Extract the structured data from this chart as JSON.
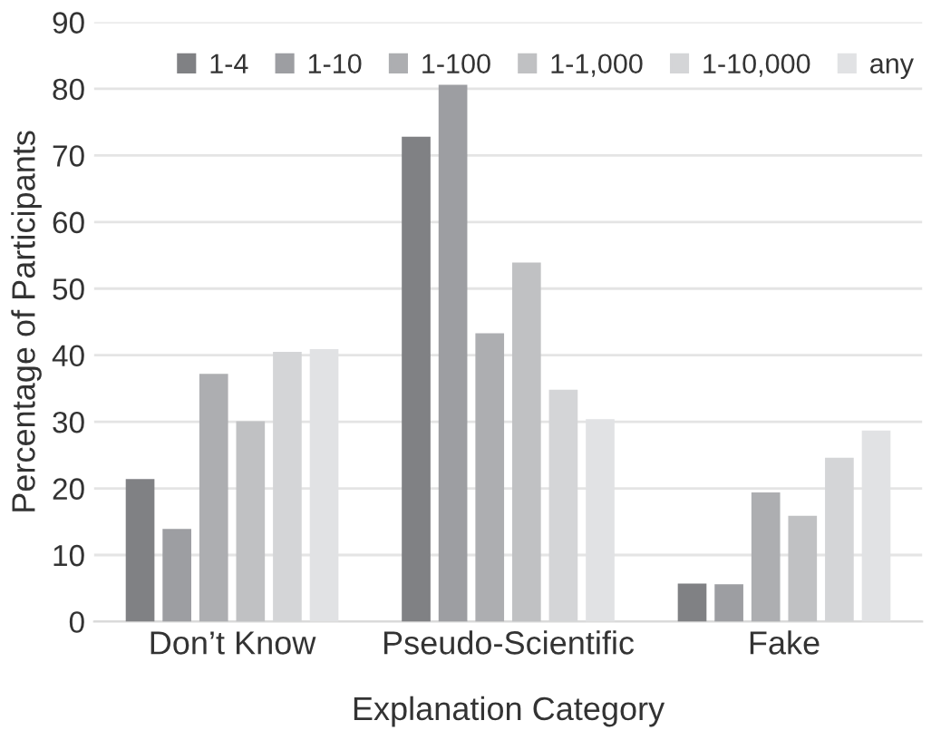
{
  "chart_data": {
    "type": "bar",
    "xlabel": "Explanation Category",
    "ylabel": "Percentage of Participants",
    "categories": [
      "Don’t Know",
      "Pseudo-Scientific",
      "Fake"
    ],
    "series": [
      {
        "name": "1-4",
        "color": "#808184",
        "values": [
          21.4,
          72.8,
          5.7
        ]
      },
      {
        "name": "1-10",
        "color": "#9d9ea2",
        "values": [
          13.9,
          80.6,
          5.6
        ]
      },
      {
        "name": "1-100",
        "color": "#adaeb1",
        "values": [
          37.2,
          43.3,
          19.4
        ]
      },
      {
        "name": "1-1,000",
        "color": "#c0c1c3",
        "values": [
          30.1,
          53.9,
          15.9
        ]
      },
      {
        "name": "1-10,000",
        "color": "#d4d5d7",
        "values": [
          40.5,
          34.8,
          24.6
        ]
      },
      {
        "name": "any",
        "color": "#e1e2e4",
        "values": [
          40.9,
          30.4,
          28.7
        ]
      }
    ],
    "ylim": [
      0,
      90
    ],
    "yticks": [
      0,
      10,
      20,
      30,
      40,
      50,
      60,
      70,
      80,
      90
    ],
    "grid": "y",
    "legend": "top"
  }
}
